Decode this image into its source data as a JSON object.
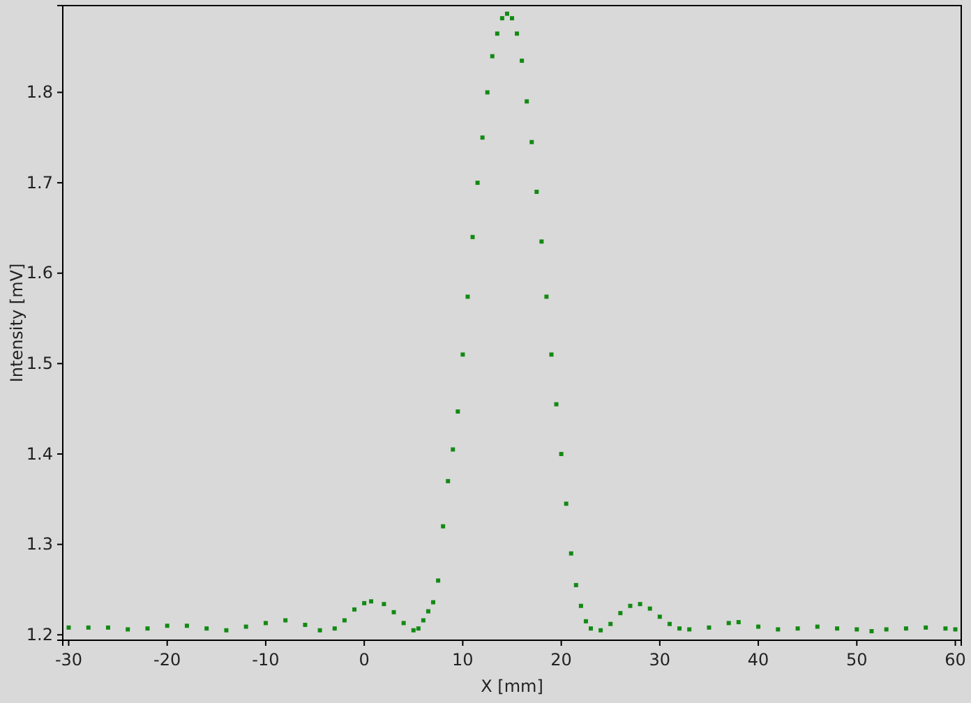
{
  "chart_data": {
    "type": "scatter",
    "xlabel": "X [mm]",
    "ylabel": "Intensity [mV]",
    "xlim": [
      -30.6,
      60.6
    ],
    "ylim": [
      1.194,
      1.896
    ],
    "xticks": [
      -30,
      -20,
      -10,
      0,
      10,
      20,
      30,
      40,
      50,
      60
    ],
    "yticks": [
      1.2,
      1.3,
      1.4,
      1.5,
      1.6,
      1.7,
      1.8
    ],
    "marker": "square",
    "series": [
      {
        "color": "#138a13",
        "x": [
          -30,
          -28,
          -26,
          -24,
          -22,
          -20,
          -18,
          -16,
          -14,
          -12,
          -10,
          -8,
          -6,
          -4.5,
          -3,
          -2,
          -1,
          0,
          0.7,
          2,
          3,
          4,
          5,
          5.5,
          6,
          6.5,
          7,
          7.5,
          8,
          8.5,
          9,
          9.5,
          10,
          10.5,
          11,
          11.5,
          12,
          12.5,
          13,
          13.5,
          14,
          14.5,
          15,
          15.5,
          16,
          16.5,
          17,
          17.5,
          18,
          18.5,
          19,
          19.5,
          20,
          20.5,
          21,
          21.5,
          22,
          22.5,
          23,
          24,
          25,
          26,
          27,
          28,
          29,
          30,
          31,
          32,
          33,
          35,
          37,
          38,
          40,
          42,
          44,
          46,
          48,
          50,
          51.5,
          53,
          55,
          57,
          59,
          60
        ],
        "values": [
          1.208,
          1.208,
          1.208,
          1.206,
          1.207,
          1.21,
          1.21,
          1.207,
          1.205,
          1.209,
          1.213,
          1.216,
          1.211,
          1.205,
          1.207,
          1.216,
          1.228,
          1.235,
          1.237,
          1.234,
          1.225,
          1.213,
          1.205,
          1.207,
          1.216,
          1.226,
          1.236,
          1.26,
          1.32,
          1.37,
          1.405,
          1.447,
          1.51,
          1.574,
          1.64,
          1.7,
          1.75,
          1.8,
          1.84,
          1.865,
          1.882,
          1.887,
          1.882,
          1.865,
          1.835,
          1.79,
          1.745,
          1.69,
          1.635,
          1.574,
          1.51,
          1.455,
          1.4,
          1.345,
          1.29,
          1.255,
          1.232,
          1.215,
          1.207,
          1.205,
          1.212,
          1.224,
          1.232,
          1.234,
          1.229,
          1.22,
          1.212,
          1.207,
          1.206,
          1.208,
          1.213,
          1.214,
          1.209,
          1.206,
          1.207,
          1.209,
          1.207,
          1.206,
          1.204,
          1.206,
          1.207,
          1.208,
          1.207,
          1.206
        ]
      }
    ]
  }
}
